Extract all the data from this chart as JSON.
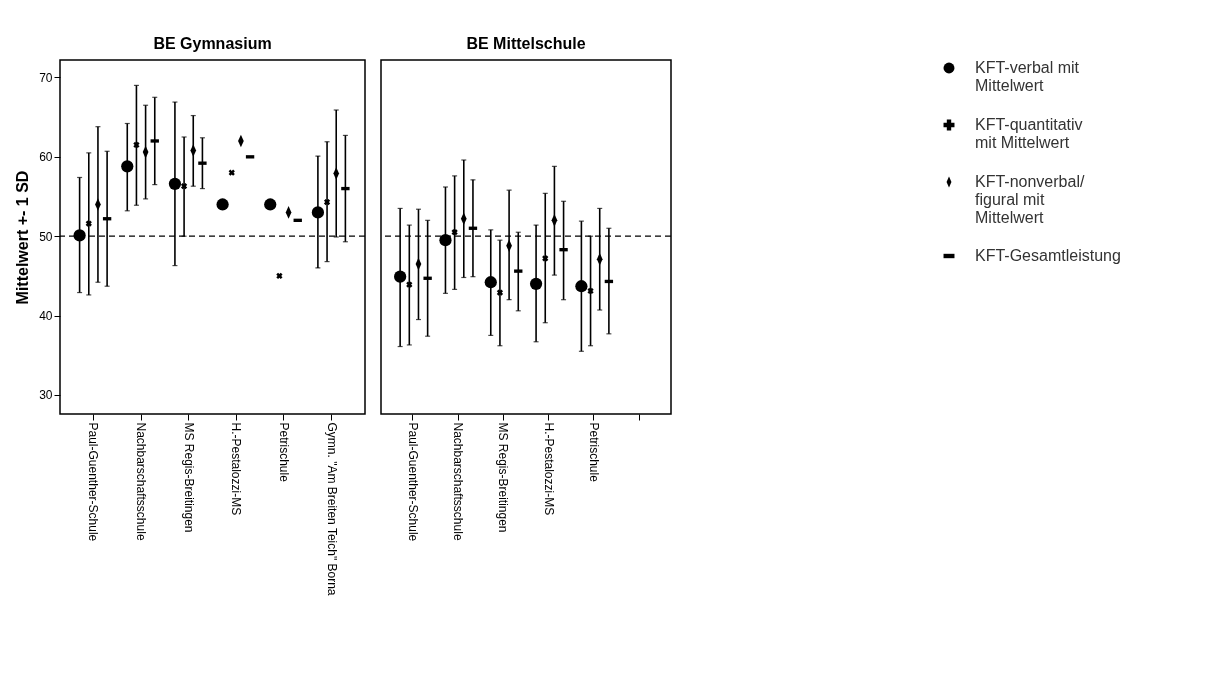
{
  "chart_data": [
    {
      "type": "scatter",
      "title": "BE Gymnasium",
      "ylabel": "Mittelwert +- 1 SD",
      "categories": [
        "Paul-Guenther-Schule",
        "Nachbarschaftsschule",
        "MS Regis-Breitingen",
        "H.-Pestalozzi-MS",
        "Petrischule",
        "Gymn. \"Am Breiten Teich\" Borna"
      ],
      "ylim": [
        27.6,
        72.2
      ],
      "yticks": [
        30,
        40,
        50,
        60,
        70
      ],
      "grid": false,
      "ref_lines": [
        {
          "axis": "y",
          "value": 50,
          "line_style": "dashed"
        }
      ],
      "series": [
        {
          "color": "#000000",
          "marker": "circle",
          "values": [
            50.1,
            58.8,
            56.6,
            54.0,
            54.0,
            53.0
          ],
          "errors": [
            [
              42.9,
              57.4
            ],
            [
              53.2,
              64.2
            ],
            [
              46.3,
              66.9
            ],
            null,
            null,
            [
              46.0,
              60.1
            ]
          ]
        },
        {
          "color": "#000000",
          "marker": "cross",
          "values": [
            51.6,
            61.5,
            56.3,
            58.0,
            45.0,
            54.3
          ],
          "errors": [
            [
              42.6,
              60.5
            ],
            [
              53.9,
              69.0
            ],
            [
              50.0,
              62.5
            ],
            null,
            null,
            [
              46.8,
              61.9
            ]
          ]
        },
        {
          "color": "#000000",
          "marker": "diamond",
          "values": [
            54.0,
            60.6,
            60.8,
            62.0,
            53.0,
            57.9
          ],
          "errors": [
            [
              44.2,
              63.8
            ],
            [
              54.7,
              66.5
            ],
            [
              56.3,
              65.2
            ],
            null,
            null,
            [
              49.9,
              65.9
            ]
          ]
        },
        {
          "color": "#000000",
          "marker": "square",
          "values": [
            52.2,
            62.0,
            59.2,
            60.0,
            52.0,
            56.0
          ],
          "errors": [
            [
              43.7,
              60.7
            ],
            [
              56.5,
              67.5
            ],
            [
              56.0,
              62.4
            ],
            null,
            null,
            [
              49.3,
              62.7
            ]
          ]
        }
      ]
    },
    {
      "type": "scatter",
      "title": "BE Mittelschule",
      "categories": [
        "Paul-Guenther-Schule",
        "Nachbarschaftsschule",
        "MS Regis-Breitingen",
        "H.-Pestalozzi-MS",
        "Petrischule",
        null
      ],
      "ylim": [
        27.6,
        72.2
      ],
      "yticks": [
        30,
        40,
        50,
        60,
        70
      ],
      "tick_labels": "x",
      "grid": false,
      "legend": "right",
      "ref_lines": [
        {
          "axis": "y",
          "value": 50,
          "line_style": "dashed"
        }
      ],
      "series": [
        {
          "name": "KFT-verbal mit Mittelwert",
          "color": "#000000",
          "marker": "circle",
          "values": [
            44.9,
            49.5,
            44.2,
            44.0,
            43.7,
            null
          ],
          "errors": [
            [
              36.1,
              53.5
            ],
            [
              42.8,
              56.2
            ],
            [
              37.5,
              50.8
            ],
            [
              36.7,
              51.4
            ],
            [
              35.5,
              51.9
            ],
            null
          ]
        },
        {
          "name": "KFT-quantitativ mit Mittelwert",
          "color": "#000000",
          "marker": "cross",
          "values": [
            43.9,
            50.5,
            42.9,
            47.2,
            43.1,
            null
          ],
          "errors": [
            [
              36.3,
              51.4
            ],
            [
              43.3,
              57.6
            ],
            [
              36.2,
              49.5
            ],
            [
              39.1,
              55.4
            ],
            [
              36.2,
              50.0
            ],
            null
          ]
        },
        {
          "name": "KFT-nonverbal/ figural mit Mittelwert",
          "color": "#000000",
          "marker": "diamond",
          "values": [
            46.5,
            52.2,
            48.8,
            52.0,
            47.1,
            null
          ],
          "errors": [
            [
              39.5,
              53.4
            ],
            [
              44.8,
              59.6
            ],
            [
              42.0,
              55.8
            ],
            [
              45.1,
              58.8
            ],
            [
              40.7,
              53.5
            ],
            null
          ]
        },
        {
          "name": "KFT-Gesamtleistung",
          "color": "#000000",
          "marker": "square",
          "values": [
            44.7,
            51.0,
            45.6,
            48.3,
            44.3,
            null
          ],
          "errors": [
            [
              37.4,
              52.0
            ],
            [
              44.9,
              57.1
            ],
            [
              40.6,
              50.5
            ],
            [
              42.0,
              54.4
            ],
            [
              37.7,
              51.0
            ],
            null
          ]
        }
      ]
    }
  ]
}
